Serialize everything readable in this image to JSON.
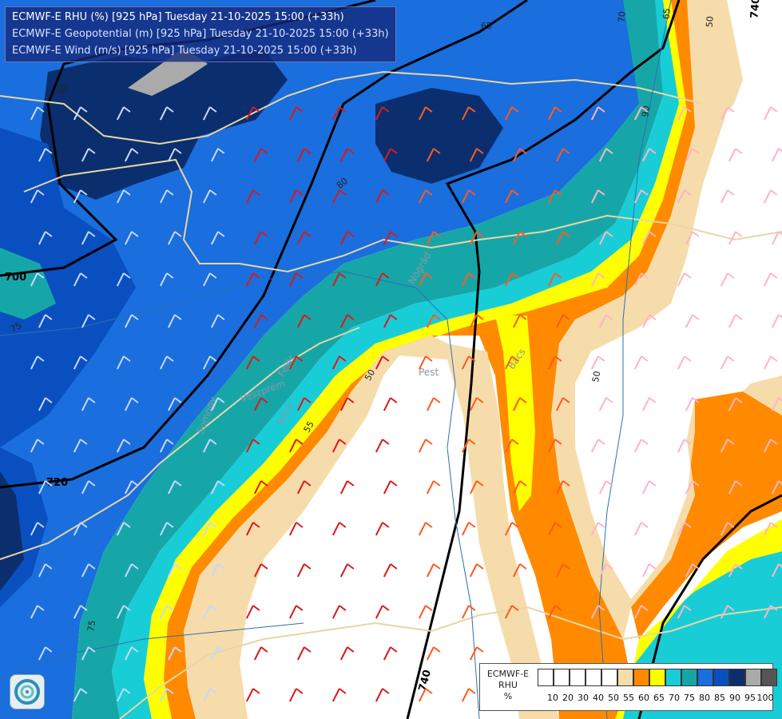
{
  "header": {
    "line1": "ECMWF-E RHU (%) [925 hPa] Tuesday 21-10-2025 15:00 (+33h)",
    "line2": "ECMWF-E Geopotential (m) [925 hPa] Tuesday 21-10-2025 15:00 (+33h)",
    "line3": "ECMWF-E Wind (m/s) [925 hPa] Tuesday 21-10-2025 15:00 (+33h)"
  },
  "legend": {
    "title_model": "ECMWF-E",
    "title_var": "RHU",
    "title_unit": "%",
    "bins": [
      {
        "label": "10",
        "color": "#ffffff"
      },
      {
        "label": "20",
        "color": "#ffffff"
      },
      {
        "label": "30",
        "color": "#ffffff"
      },
      {
        "label": "40",
        "color": "#ffffff"
      },
      {
        "label": "50",
        "color": "#ffffff"
      },
      {
        "label": "55",
        "color": "#f6dcaa"
      },
      {
        "label": "60",
        "color": "#ff8a00"
      },
      {
        "label": "65",
        "color": "#ffff00"
      },
      {
        "label": "70",
        "color": "#18cdd6"
      },
      {
        "label": "75",
        "color": "#17a6a8"
      },
      {
        "label": "80",
        "color": "#1a6edd"
      },
      {
        "label": "85",
        "color": "#0a4fc0"
      },
      {
        "label": "90",
        "color": "#0b2e6e"
      },
      {
        "label": "95",
        "color": "#aaaaaa"
      },
      {
        "label": "100",
        "color": "#555555"
      }
    ]
  },
  "contour_labels": {
    "geopotential": [
      "700",
      "720",
      "740",
      "740"
    ],
    "rhu": [
      "50",
      "50",
      "50",
      "55",
      "65",
      "70",
      "75",
      "75",
      "80",
      "90",
      "90",
      "65"
    ]
  },
  "places": [
    "Pest",
    "Bács",
    "Tolna",
    "Somogy",
    "Fejér",
    "Veszprém",
    "Nógrád"
  ],
  "colors": {
    "deep_blue": "#0b2e6e",
    "blue": "#1a6edd",
    "mid_blue": "#0a4fc0",
    "teal": "#17a6a8",
    "cyan": "#18cdd6",
    "yellow": "#ffff00",
    "orange": "#ff8a00",
    "tan": "#f6dcaa",
    "white": "#ffffff",
    "border": "#e8d6a6",
    "river": "#2c6fb5",
    "geopotential_line": "#000000"
  },
  "icons": {
    "logo": "ecmwf-logo-icon"
  }
}
